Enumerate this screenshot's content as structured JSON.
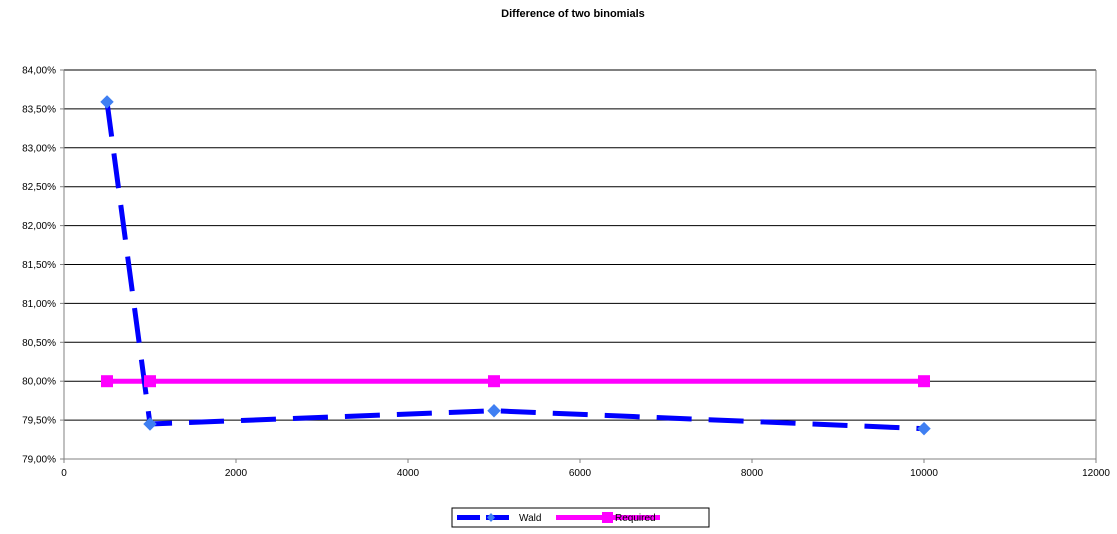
{
  "chart_data": {
    "type": "line",
    "title": "Difference of two binomials",
    "xlabel": "",
    "ylabel": "",
    "xlim": [
      0,
      12000
    ],
    "ylim": [
      0.79,
      0.84
    ],
    "x_ticks": [
      0,
      2000,
      4000,
      6000,
      8000,
      10000,
      12000
    ],
    "x_tick_labels": [
      "0",
      "2000",
      "4000",
      "6000",
      "8000",
      "10000",
      "12000"
    ],
    "y_ticks": [
      0.79,
      0.795,
      0.8,
      0.805,
      0.81,
      0.815,
      0.82,
      0.825,
      0.83,
      0.835,
      0.84
    ],
    "y_tick_labels": [
      "79,00%",
      "79,50%",
      "80,00%",
      "80,50%",
      "81,00%",
      "81,50%",
      "82,00%",
      "82,50%",
      "83,00%",
      "83,50%",
      "84,00%"
    ],
    "grid": "horizontal",
    "legend_position": "bottom",
    "series": [
      {
        "name": "Wald",
        "x": [
          500,
          1000,
          5000,
          10000
        ],
        "y": [
          0.8359,
          0.7945,
          0.7962,
          0.7939
        ],
        "color": "#0000ff",
        "marker_color": "#3f7ff2",
        "style": "dashed",
        "marker": "diamond"
      },
      {
        "name": "Required",
        "x": [
          500,
          1000,
          5000,
          10000
        ],
        "y": [
          0.8,
          0.8,
          0.8,
          0.8
        ],
        "color": "#ff00ff",
        "marker_color": "#ff00ff",
        "style": "solid",
        "marker": "square"
      }
    ]
  }
}
